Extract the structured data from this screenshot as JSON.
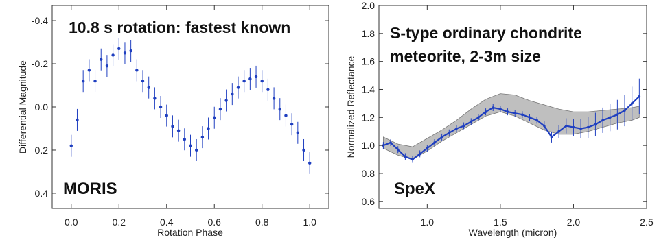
{
  "chart_data": [
    {
      "type": "scatter",
      "title": "",
      "xlabel": "Rotation Phase",
      "ylabel": "Differential Magnitude",
      "xlim": [
        -0.08,
        1.08
      ],
      "ylim": [
        0.47,
        -0.47
      ],
      "y_inverted": true,
      "xticks": [
        "0.0",
        "0.2",
        "0.4",
        "0.6",
        "0.8",
        "1.0"
      ],
      "yticks": [
        "-0.4",
        "-0.2",
        "0.0",
        "0.2",
        "0.4"
      ],
      "annotations": [
        "10.8 s rotation: fastest known",
        "MORIS"
      ],
      "color": "#1f3fc0",
      "grid": false,
      "series": [
        {
          "error_bars": true,
          "x": [
            0.0,
            0.025,
            0.05,
            0.075,
            0.1,
            0.125,
            0.15,
            0.175,
            0.2,
            0.225,
            0.25,
            0.275,
            0.3,
            0.325,
            0.35,
            0.375,
            0.4,
            0.425,
            0.45,
            0.475,
            0.5,
            0.525,
            0.55,
            0.575,
            0.6,
            0.625,
            0.65,
            0.675,
            0.7,
            0.725,
            0.75,
            0.775,
            0.8,
            0.825,
            0.85,
            0.875,
            0.9,
            0.925,
            0.95,
            0.975,
            1.0
          ],
          "y": [
            0.18,
            0.06,
            -0.12,
            -0.17,
            -0.12,
            -0.22,
            -0.19,
            -0.24,
            -0.27,
            -0.25,
            -0.26,
            -0.17,
            -0.12,
            -0.09,
            -0.04,
            0.0,
            0.04,
            0.09,
            0.11,
            0.15,
            0.18,
            0.2,
            0.14,
            0.1,
            0.05,
            0.01,
            -0.03,
            -0.06,
            -0.09,
            -0.12,
            -0.13,
            -0.14,
            -0.12,
            -0.08,
            -0.04,
            0.01,
            0.04,
            0.08,
            0.12,
            0.2,
            0.26
          ]
        }
      ]
    },
    {
      "type": "line",
      "title": "",
      "xlabel": "Wavelength (micron)",
      "ylabel": "Normalized Reflectance",
      "xlim": [
        0.67,
        2.5
      ],
      "ylim": [
        0.55,
        2.0
      ],
      "xticks": [
        "1.0",
        "1.5",
        "2.0",
        "2.5"
      ],
      "yticks": [
        "0.6",
        "0.8",
        "1.0",
        "1.2",
        "1.4",
        "1.6",
        "1.8",
        "2.0"
      ],
      "annotations": [
        "S-type ordinary chondrite",
        "meteorite, 2-3m size",
        "SpeX"
      ],
      "color": "#1f3fc0",
      "band_color": "#a9a9a9",
      "grid": false,
      "series": [
        {
          "kind": "spectrum",
          "error_bars": true,
          "x": [
            0.7,
            0.75,
            0.8,
            0.85,
            0.9,
            0.95,
            1.0,
            1.05,
            1.1,
            1.15,
            1.2,
            1.25,
            1.3,
            1.35,
            1.4,
            1.45,
            1.5,
            1.55,
            1.6,
            1.65,
            1.7,
            1.75,
            1.8,
            1.85,
            1.9,
            1.95,
            2.0,
            2.05,
            2.1,
            2.15,
            2.2,
            2.25,
            2.3,
            2.35,
            2.4,
            2.45
          ],
          "y": [
            1.0,
            1.02,
            0.97,
            0.92,
            0.9,
            0.94,
            0.98,
            1.02,
            1.06,
            1.09,
            1.12,
            1.14,
            1.17,
            1.2,
            1.24,
            1.27,
            1.26,
            1.24,
            1.23,
            1.22,
            1.2,
            1.18,
            1.14,
            1.06,
            1.1,
            1.14,
            1.13,
            1.12,
            1.13,
            1.15,
            1.18,
            1.2,
            1.22,
            1.25,
            1.3,
            1.35
          ]
        },
        {
          "kind": "model-band",
          "x": [
            0.7,
            0.8,
            0.9,
            1.0,
            1.1,
            1.2,
            1.3,
            1.4,
            1.5,
            1.6,
            1.7,
            1.8,
            1.9,
            2.0,
            2.1,
            2.2,
            2.3,
            2.4,
            2.45
          ],
          "y_low": [
            0.98,
            0.93,
            0.9,
            0.96,
            1.03,
            1.09,
            1.15,
            1.21,
            1.24,
            1.21,
            1.16,
            1.11,
            1.08,
            1.08,
            1.1,
            1.13,
            1.16,
            1.18,
            1.2
          ],
          "y_high": [
            1.06,
            1.01,
            0.99,
            1.05,
            1.11,
            1.18,
            1.26,
            1.33,
            1.37,
            1.36,
            1.32,
            1.29,
            1.26,
            1.24,
            1.24,
            1.25,
            1.26,
            1.27,
            1.28
          ]
        }
      ]
    }
  ]
}
